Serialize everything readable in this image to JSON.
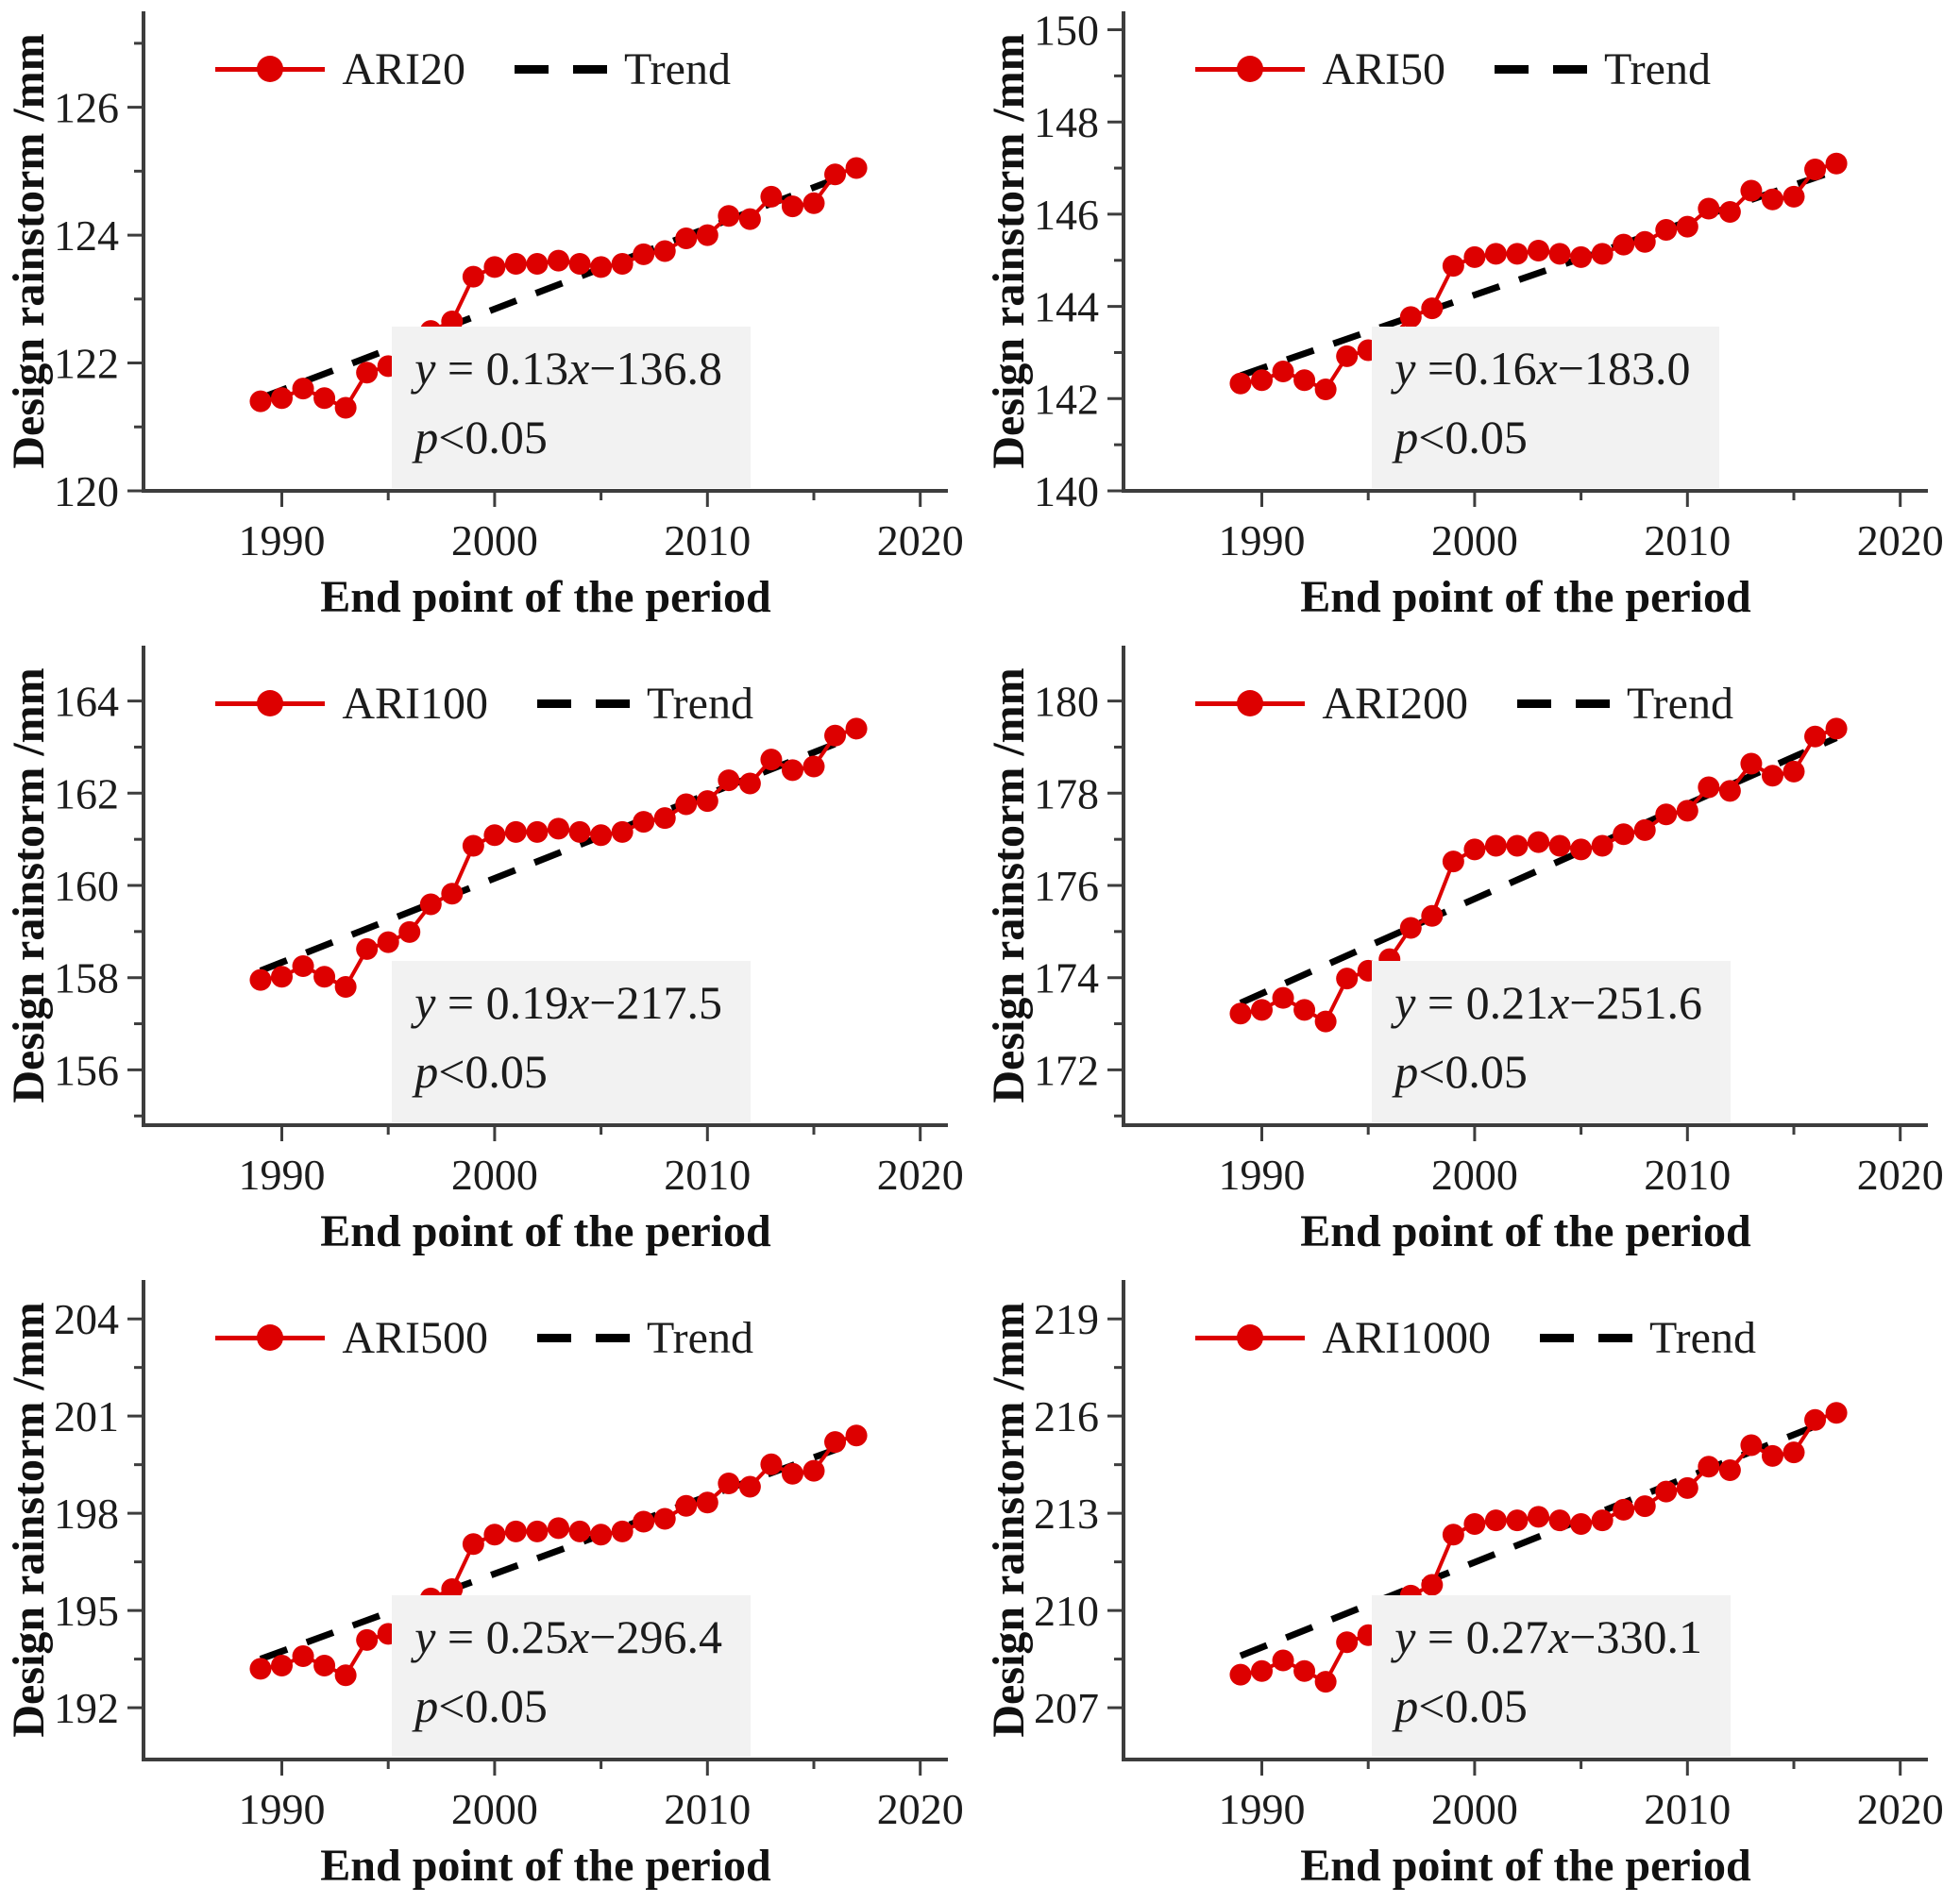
{
  "figure": {
    "title": "",
    "columns": 2,
    "rows": 3,
    "colors": {
      "series": "#dd0000",
      "trend": "#000000",
      "axis": "#3d3d3d",
      "text": "#1c1c1c",
      "equation_box_bg": "#f2f2f2"
    }
  },
  "chart_data": [
    {
      "type": "line",
      "series_name": "ARI20",
      "trend_label": "Trend",
      "xlabel": "End point of the period",
      "ylabel": "Design rainstorm /mm",
      "grid": false,
      "legend_position": "top-left",
      "xlim": [
        1983.5,
        2021.3
      ],
      "ylim": [
        120,
        127.5
      ],
      "x_major_ticks": [
        1990,
        2000,
        2010,
        2020
      ],
      "x_minor_ticks": [
        1995,
        2005,
        2015
      ],
      "y_major_ticks": [
        120,
        122,
        124,
        126
      ],
      "y_minor_ticks": [
        121,
        123,
        125,
        127
      ],
      "x": [
        1989,
        1990,
        1991,
        1992,
        1993,
        1994,
        1995,
        1996,
        1997,
        1998,
        1999,
        2000,
        2001,
        2002,
        2003,
        2004,
        2005,
        2006,
        2007,
        2008,
        2009,
        2010,
        2011,
        2012,
        2013,
        2014,
        2015,
        2016,
        2017
      ],
      "values": [
        121.4,
        121.45,
        121.6,
        121.45,
        121.3,
        121.85,
        121.95,
        122.1,
        122.5,
        122.65,
        123.35,
        123.5,
        123.55,
        123.55,
        123.6,
        123.55,
        123.5,
        123.55,
        123.7,
        123.75,
        123.95,
        124.0,
        124.3,
        124.25,
        124.6,
        124.45,
        124.5,
        124.95,
        125.05
      ],
      "trend": {
        "x": [
          1989,
          2017
        ],
        "y": [
          121.45,
          125.0
        ]
      },
      "eq_parts": [
        "y",
        " = 0.13",
        "x",
        "−136.8"
      ],
      "p_parts": [
        "p",
        "<0.05"
      ]
    },
    {
      "type": "line",
      "series_name": "ARI50",
      "trend_label": "Trend",
      "xlabel": "End point of the period",
      "ylabel": "Design rainstorm /mm",
      "grid": false,
      "legend_position": "top-left",
      "xlim": [
        1983.5,
        2021.3
      ],
      "ylim": [
        140,
        150.4
      ],
      "x_major_ticks": [
        1990,
        2000,
        2010,
        2020
      ],
      "x_minor_ticks": [
        1995,
        2005,
        2015
      ],
      "y_major_ticks": [
        140,
        142,
        144,
        146,
        148,
        150
      ],
      "y_minor_ticks": [
        141,
        143,
        145,
        147,
        149
      ],
      "x": [
        1989,
        1990,
        1991,
        1992,
        1993,
        1994,
        1995,
        1996,
        1997,
        1998,
        1999,
        2000,
        2001,
        2002,
        2003,
        2004,
        2005,
        2006,
        2007,
        2008,
        2009,
        2010,
        2011,
        2012,
        2013,
        2014,
        2015,
        2016,
        2017
      ],
      "values": [
        142.33,
        142.4,
        142.59,
        142.4,
        142.2,
        142.92,
        143.05,
        143.25,
        143.77,
        143.96,
        144.88,
        145.07,
        145.14,
        145.14,
        145.21,
        145.14,
        145.07,
        145.14,
        145.34,
        145.4,
        145.66,
        145.73,
        146.12,
        146.05,
        146.51,
        146.32,
        146.38,
        146.97,
        147.1
      ],
      "trend": {
        "x": [
          1989,
          2017
        ],
        "y": [
          142.5,
          146.95
        ]
      },
      "eq_parts": [
        "y",
        " =0.16",
        "x",
        "−183.0"
      ],
      "p_parts": [
        "p",
        "<0.05"
      ]
    },
    {
      "type": "line",
      "series_name": "ARI100",
      "trend_label": "Trend",
      "xlabel": "End point of the period",
      "ylabel": "Design rainstorm /mm",
      "grid": false,
      "legend_position": "top-left",
      "xlim": [
        1983.5,
        2021.3
      ],
      "ylim": [
        154.8,
        165.2
      ],
      "x_major_ticks": [
        1990,
        2000,
        2010,
        2020
      ],
      "x_minor_ticks": [
        1995,
        2005,
        2015
      ],
      "y_major_ticks": [
        156,
        158,
        160,
        162,
        164
      ],
      "y_minor_ticks": [
        155,
        157,
        159,
        161,
        163
      ],
      "x": [
        1989,
        1990,
        1991,
        1992,
        1993,
        1994,
        1995,
        1996,
        1997,
        1998,
        1999,
        2000,
        2001,
        2002,
        2003,
        2004,
        2005,
        2006,
        2007,
        2008,
        2009,
        2010,
        2011,
        2012,
        2013,
        2014,
        2015,
        2016,
        2017
      ],
      "values": [
        157.95,
        158.02,
        158.25,
        158.02,
        157.8,
        158.62,
        158.77,
        158.99,
        159.59,
        159.82,
        160.86,
        161.09,
        161.16,
        161.16,
        161.23,
        161.16,
        161.09,
        161.16,
        161.38,
        161.46,
        161.76,
        161.83,
        162.28,
        162.21,
        162.73,
        162.5,
        162.58,
        163.25,
        163.4
      ],
      "trend": {
        "x": [
          1989,
          2017
        ],
        "y": [
          158.15,
          163.25
        ]
      },
      "eq_parts": [
        "y",
        " = 0.19",
        "x",
        "−217.5"
      ],
      "p_parts": [
        "p",
        "<0.05"
      ]
    },
    {
      "type": "line",
      "series_name": "ARI200",
      "trend_label": "Trend",
      "xlabel": "End point of the period",
      "ylabel": "Design rainstorm /mm",
      "grid": false,
      "legend_position": "top-left",
      "xlim": [
        1983.5,
        2021.3
      ],
      "ylim": [
        170.8,
        181.2
      ],
      "x_major_ticks": [
        1990,
        2000,
        2010,
        2020
      ],
      "x_minor_ticks": [
        1995,
        2005,
        2015
      ],
      "y_major_ticks": [
        172,
        174,
        176,
        178,
        180
      ],
      "y_minor_ticks": [
        171,
        173,
        175,
        177,
        179
      ],
      "x": [
        1989,
        1990,
        1991,
        1992,
        1993,
        1994,
        1995,
        1996,
        1997,
        1998,
        1999,
        2000,
        2001,
        2002,
        2003,
        2004,
        2005,
        2006,
        2007,
        2008,
        2009,
        2010,
        2011,
        2012,
        2013,
        2014,
        2015,
        2016,
        2017
      ],
      "values": [
        173.22,
        173.3,
        173.56,
        173.3,
        173.05,
        173.98,
        174.15,
        174.4,
        175.08,
        175.34,
        176.52,
        176.78,
        176.86,
        176.86,
        176.94,
        176.86,
        176.78,
        176.86,
        177.11,
        177.2,
        177.54,
        177.62,
        178.13,
        178.05,
        178.64,
        178.38,
        178.47,
        179.23,
        179.4
      ],
      "trend": {
        "x": [
          1989,
          2017
        ],
        "y": [
          173.45,
          179.2
        ]
      },
      "eq_parts": [
        "y",
        " = 0.21",
        "x",
        "−251.6"
      ],
      "p_parts": [
        "p",
        "<0.05"
      ]
    },
    {
      "type": "line",
      "series_name": "ARI500",
      "trend_label": "Trend",
      "xlabel": "End point of the period",
      "ylabel": "Design rainstorm /mm",
      "grid": false,
      "legend_position": "top-left",
      "xlim": [
        1983.5,
        2021.3
      ],
      "ylim": [
        190.4,
        205.2
      ],
      "x_major_ticks": [
        1990,
        2000,
        2010,
        2020
      ],
      "x_minor_ticks": [
        1995,
        2005,
        2015
      ],
      "y_major_ticks": [
        192,
        195,
        198,
        201,
        204
      ],
      "y_minor_ticks": [
        193.5,
        196.5,
        199.5,
        202.5
      ],
      "x": [
        1989,
        1990,
        1991,
        1992,
        1993,
        1994,
        1995,
        1996,
        1997,
        1998,
        1999,
        2000,
        2001,
        2002,
        2003,
        2004,
        2005,
        2006,
        2007,
        2008,
        2009,
        2010,
        2011,
        2012,
        2013,
        2014,
        2015,
        2016,
        2017
      ],
      "values": [
        193.2,
        193.3,
        193.59,
        193.3,
        193.0,
        194.09,
        194.28,
        194.58,
        195.37,
        195.66,
        197.05,
        197.34,
        197.44,
        197.44,
        197.54,
        197.44,
        197.34,
        197.44,
        197.74,
        197.83,
        198.23,
        198.33,
        198.92,
        198.82,
        199.51,
        199.22,
        199.31,
        200.2,
        200.4
      ],
      "trend": {
        "x": [
          1989,
          2017
        ],
        "y": [
          193.5,
          200.2
        ]
      },
      "eq_parts": [
        "y",
        " = 0.25",
        "x",
        "−296.4"
      ],
      "p_parts": [
        "p",
        "<0.05"
      ]
    },
    {
      "type": "line",
      "series_name": "ARI1000",
      "trend_label": "Trend",
      "xlabel": "End point of the period",
      "ylabel": "Design rainstorm /mm",
      "grid": false,
      "legend_position": "top-left",
      "xlim": [
        1983.5,
        2021.3
      ],
      "ylim": [
        205.4,
        220.2
      ],
      "x_major_ticks": [
        1990,
        2000,
        2010,
        2020
      ],
      "x_minor_ticks": [
        1995,
        2005,
        2015
      ],
      "y_major_ticks": [
        207,
        210,
        213,
        216,
        219
      ],
      "y_minor_ticks": [
        208.5,
        211.5,
        214.5,
        217.5
      ],
      "x": [
        1989,
        1990,
        1991,
        1992,
        1993,
        1994,
        1995,
        1996,
        1997,
        1998,
        1999,
        2000,
        2001,
        2002,
        2003,
        2004,
        2005,
        2006,
        2007,
        2008,
        2009,
        2010,
        2011,
        2012,
        2013,
        2014,
        2015,
        2016,
        2017
      ],
      "values": [
        208.02,
        208.13,
        208.46,
        208.13,
        207.8,
        209.02,
        209.24,
        209.57,
        210.46,
        210.79,
        212.34,
        212.67,
        212.78,
        212.78,
        212.89,
        212.78,
        212.67,
        212.78,
        213.11,
        213.22,
        213.67,
        213.78,
        214.44,
        214.33,
        215.1,
        214.77,
        214.88,
        215.88,
        216.1
      ],
      "trend": {
        "x": [
          1989,
          2017
        ],
        "y": [
          208.6,
          215.95
        ]
      },
      "eq_parts": [
        "y",
        " = 0.27",
        "x",
        "−330.1"
      ],
      "p_parts": [
        "p",
        "<0.05"
      ]
    }
  ]
}
